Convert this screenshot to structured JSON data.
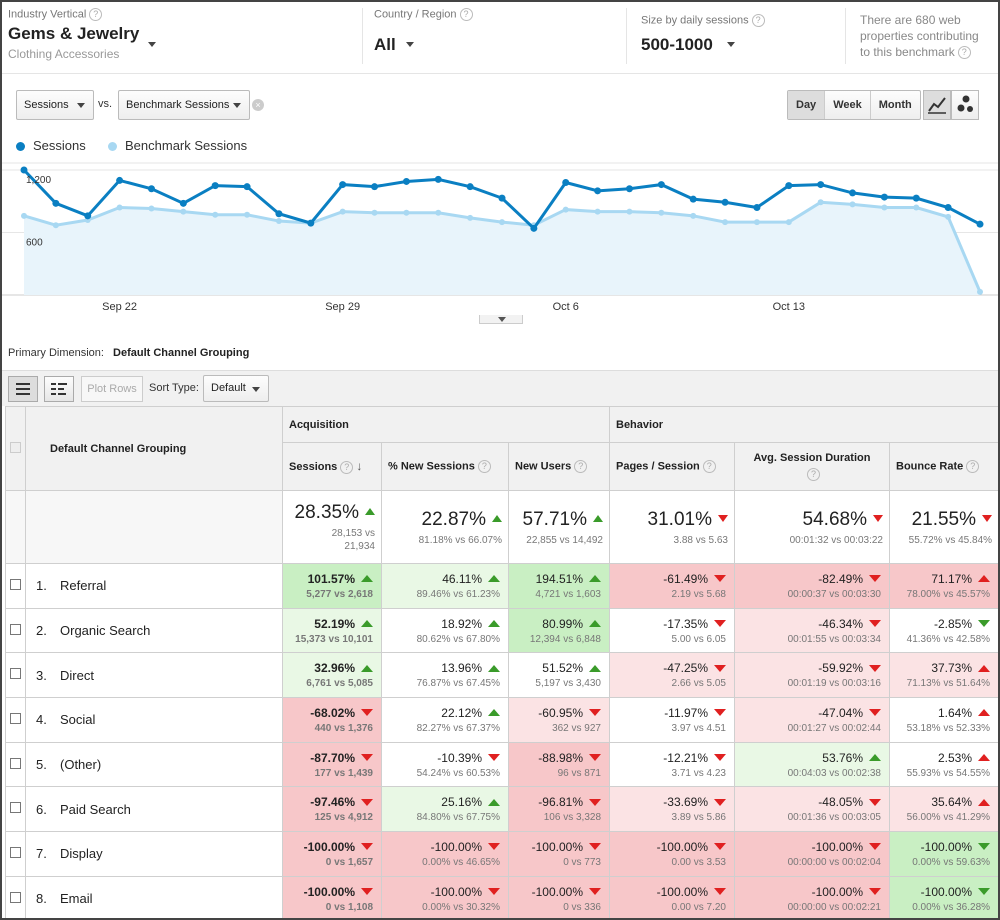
{
  "selectors": {
    "industry": {
      "label": "Industry Vertical",
      "value": "Gems & Jewelry",
      "sub": "Clothing Accessories"
    },
    "country": {
      "label": "Country / Region",
      "value": "All"
    },
    "size": {
      "label": "Size by daily sessions",
      "value": "500-1000"
    },
    "properties_note": [
      "There are 680 web",
      "properties contributing",
      "to this benchmark"
    ]
  },
  "controls": {
    "metric1": "Sessions",
    "vs": "vs.",
    "metric2": "Benchmark Sessions",
    "remove": "×",
    "granularity": [
      "Day",
      "Week",
      "Month"
    ],
    "granularity_selected": "Day"
  },
  "legend": [
    {
      "name": "Sessions",
      "color": "#0a7fc2"
    },
    {
      "name": "Benchmark Sessions",
      "color": "#a8d8f2"
    }
  ],
  "chart_data": {
    "type": "line",
    "x_tick_labels": [
      "Sep 22",
      "Sep 29",
      "Oct 6",
      "Oct 13"
    ],
    "x_tick_index": [
      3,
      10,
      17,
      24
    ],
    "y_tick_labels": [
      "1,200",
      "600"
    ],
    "y_ticks": [
      1200,
      600
    ],
    "ylim": [
      0,
      1200
    ],
    "series": [
      {
        "name": "Sessions",
        "color": "#0a7fc2",
        "values": [
          1200,
          880,
          760,
          1100,
          1020,
          880,
          1050,
          1040,
          780,
          690,
          1060,
          1040,
          1090,
          1110,
          1040,
          930,
          640,
          1080,
          1000,
          1020,
          1060,
          920,
          890,
          840,
          1050,
          1060,
          980,
          940,
          930,
          840,
          680
        ]
      },
      {
        "name": "Benchmark Sessions",
        "color": "#a8d8f2",
        "values": [
          760,
          670,
          720,
          840,
          830,
          800,
          770,
          770,
          710,
          690,
          800,
          790,
          790,
          790,
          740,
          700,
          670,
          820,
          800,
          800,
          790,
          760,
          700,
          700,
          700,
          890,
          870,
          840,
          840,
          750,
          30
        ]
      }
    ]
  },
  "primary_dimension": {
    "label": "Primary Dimension:",
    "value": "Default Channel Grouping"
  },
  "toolbar": {
    "plot_rows": "Plot Rows",
    "sort_label": "Sort Type:",
    "sort_value": "Default"
  },
  "table": {
    "dim_header": "Default Channel Grouping",
    "group_acq": "Acquisition",
    "group_beh": "Behavior",
    "columns": [
      "Sessions",
      "% New Sessions",
      "New Users",
      "Pages / Session",
      "Avg. Session Duration",
      "Bounce Rate"
    ],
    "totals": [
      {
        "v": "28.35%",
        "dir": "up",
        "s1": "28,153 vs",
        "s2": "21,934"
      },
      {
        "v": "22.87%",
        "dir": "up",
        "s1": "81.18% vs 66.07%",
        "s2": ""
      },
      {
        "v": "57.71%",
        "dir": "up",
        "s1": "22,855 vs 14,492",
        "s2": ""
      },
      {
        "v": "31.01%",
        "dir": "dn",
        "s1": "3.88 vs 5.63",
        "s2": ""
      },
      {
        "v": "54.68%",
        "dir": "dn",
        "s1": "00:01:32 vs 00:03:22",
        "s2": ""
      },
      {
        "v": "21.55%",
        "dir": "dn",
        "s1": "55.72% vs 45.84%",
        "s2": ""
      }
    ],
    "rows": [
      {
        "n": "1.",
        "label": "Referral",
        "cells": [
          {
            "v": "101.57%",
            "dir": "up",
            "s": "5,277 vs 2,618",
            "bg": "#c9efc3"
          },
          {
            "v": "46.11%",
            "dir": "up",
            "s": "89.46% vs 61.23%",
            "bg": "#e9f8e5"
          },
          {
            "v": "194.51%",
            "dir": "up",
            "s": "4,721 vs 1,603",
            "bg": "#c9efc3"
          },
          {
            "v": "-61.49%",
            "dir": "dn",
            "s": "2.19 vs 5.68",
            "bg": "#f7c7c9"
          },
          {
            "v": "-82.49%",
            "dir": "dn",
            "s": "00:00:37 vs 00:03:30",
            "bg": "#f7c7c9"
          },
          {
            "v": "71.17%",
            "dir": "up-red",
            "s": "78.00% vs 45.57%",
            "bg": "#f7c7c9"
          }
        ]
      },
      {
        "n": "2.",
        "label": "Organic Search",
        "cells": [
          {
            "v": "52.19%",
            "dir": "up",
            "s": "15,373 vs 10,101",
            "bg": "#e9f8e5"
          },
          {
            "v": "18.92%",
            "dir": "up",
            "s": "80.62% vs 67.80%",
            "bg": "#ffffff"
          },
          {
            "v": "80.99%",
            "dir": "up",
            "s": "12,394 vs 6,848",
            "bg": "#c9efc3"
          },
          {
            "v": "-17.35%",
            "dir": "dn",
            "s": "5.00 vs 6.05",
            "bg": "#ffffff"
          },
          {
            "v": "-46.34%",
            "dir": "dn",
            "s": "00:01:55 vs 00:03:34",
            "bg": "#fbe3e4"
          },
          {
            "v": "-2.85%",
            "dir": "dn-green",
            "s": "41.36% vs 42.58%",
            "bg": "#ffffff"
          }
        ]
      },
      {
        "n": "3.",
        "label": "Direct",
        "cells": [
          {
            "v": "32.96%",
            "dir": "up",
            "s": "6,761 vs 5,085",
            "bg": "#e9f8e5"
          },
          {
            "v": "13.96%",
            "dir": "up",
            "s": "76.87% vs 67.45%",
            "bg": "#ffffff"
          },
          {
            "v": "51.52%",
            "dir": "up",
            "s": "5,197 vs 3,430",
            "bg": "#ffffff"
          },
          {
            "v": "-47.25%",
            "dir": "dn",
            "s": "2.66 vs 5.05",
            "bg": "#fbe3e4"
          },
          {
            "v": "-59.92%",
            "dir": "dn",
            "s": "00:01:19 vs 00:03:16",
            "bg": "#fbe3e4"
          },
          {
            "v": "37.73%",
            "dir": "up-red",
            "s": "71.13% vs 51.64%",
            "bg": "#fbe3e4"
          }
        ]
      },
      {
        "n": "4.",
        "label": "Social",
        "cells": [
          {
            "v": "-68.02%",
            "dir": "dn",
            "s": "440 vs 1,376",
            "bg": "#f7c7c9"
          },
          {
            "v": "22.12%",
            "dir": "up",
            "s": "82.27% vs 67.37%",
            "bg": "#ffffff"
          },
          {
            "v": "-60.95%",
            "dir": "dn",
            "s": "362 vs 927",
            "bg": "#fbe3e4"
          },
          {
            "v": "-11.97%",
            "dir": "dn",
            "s": "3.97 vs 4.51",
            "bg": "#ffffff"
          },
          {
            "v": "-47.04%",
            "dir": "dn",
            "s": "00:01:27 vs 00:02:44",
            "bg": "#fbe3e4"
          },
          {
            "v": "1.64%",
            "dir": "up-red",
            "s": "53.18% vs 52.33%",
            "bg": "#ffffff"
          }
        ]
      },
      {
        "n": "5.",
        "label": "(Other)",
        "cells": [
          {
            "v": "-87.70%",
            "dir": "dn",
            "s": "177 vs 1,439",
            "bg": "#f7c7c9"
          },
          {
            "v": "-10.39%",
            "dir": "dn",
            "s": "54.24% vs 60.53%",
            "bg": "#ffffff"
          },
          {
            "v": "-88.98%",
            "dir": "dn",
            "s": "96 vs 871",
            "bg": "#f7c7c9"
          },
          {
            "v": "-12.21%",
            "dir": "dn",
            "s": "3.71 vs 4.23",
            "bg": "#ffffff"
          },
          {
            "v": "53.76%",
            "dir": "up",
            "s": "00:04:03 vs 00:02:38",
            "bg": "#e9f8e5"
          },
          {
            "v": "2.53%",
            "dir": "up-red",
            "s": "55.93% vs 54.55%",
            "bg": "#ffffff"
          }
        ]
      },
      {
        "n": "6.",
        "label": "Paid Search",
        "cells": [
          {
            "v": "-97.46%",
            "dir": "dn",
            "s": "125 vs 4,912",
            "bg": "#f7c7c9"
          },
          {
            "v": "25.16%",
            "dir": "up",
            "s": "84.80% vs 67.75%",
            "bg": "#e9f8e5"
          },
          {
            "v": "-96.81%",
            "dir": "dn",
            "s": "106 vs 3,328",
            "bg": "#f7c7c9"
          },
          {
            "v": "-33.69%",
            "dir": "dn",
            "s": "3.89 vs 5.86",
            "bg": "#fbe3e4"
          },
          {
            "v": "-48.05%",
            "dir": "dn",
            "s": "00:01:36 vs 00:03:05",
            "bg": "#fbe3e4"
          },
          {
            "v": "35.64%",
            "dir": "up-red",
            "s": "56.00% vs 41.29%",
            "bg": "#fbe3e4"
          }
        ]
      },
      {
        "n": "7.",
        "label": "Display",
        "cells": [
          {
            "v": "-100.00%",
            "dir": "dn",
            "s": "0 vs 1,657",
            "bg": "#f7c7c9"
          },
          {
            "v": "-100.00%",
            "dir": "dn",
            "s": "0.00% vs 46.65%",
            "bg": "#f7c7c9"
          },
          {
            "v": "-100.00%",
            "dir": "dn",
            "s": "0 vs 773",
            "bg": "#f7c7c9"
          },
          {
            "v": "-100.00%",
            "dir": "dn",
            "s": "0.00 vs 3.53",
            "bg": "#f7c7c9"
          },
          {
            "v": "-100.00%",
            "dir": "dn",
            "s": "00:00:00 vs 00:02:04",
            "bg": "#f7c7c9"
          },
          {
            "v": "-100.00%",
            "dir": "dn-green",
            "s": "0.00% vs 59.63%",
            "bg": "#c9efc3"
          }
        ]
      },
      {
        "n": "8.",
        "label": "Email",
        "cells": [
          {
            "v": "-100.00%",
            "dir": "dn",
            "s": "0 vs 1,108",
            "bg": "#f7c7c9"
          },
          {
            "v": "-100.00%",
            "dir": "dn",
            "s": "0.00% vs 30.32%",
            "bg": "#f7c7c9"
          },
          {
            "v": "-100.00%",
            "dir": "dn",
            "s": "0 vs 336",
            "bg": "#f7c7c9"
          },
          {
            "v": "-100.00%",
            "dir": "dn",
            "s": "0.00 vs 7.20",
            "bg": "#f7c7c9"
          },
          {
            "v": "-100.00%",
            "dir": "dn",
            "s": "00:00:00 vs 00:02:21",
            "bg": "#f7c7c9"
          },
          {
            "v": "-100.00%",
            "dir": "dn-green",
            "s": "0.00% vs 36.28%",
            "bg": "#c9efc3"
          }
        ]
      }
    ]
  }
}
